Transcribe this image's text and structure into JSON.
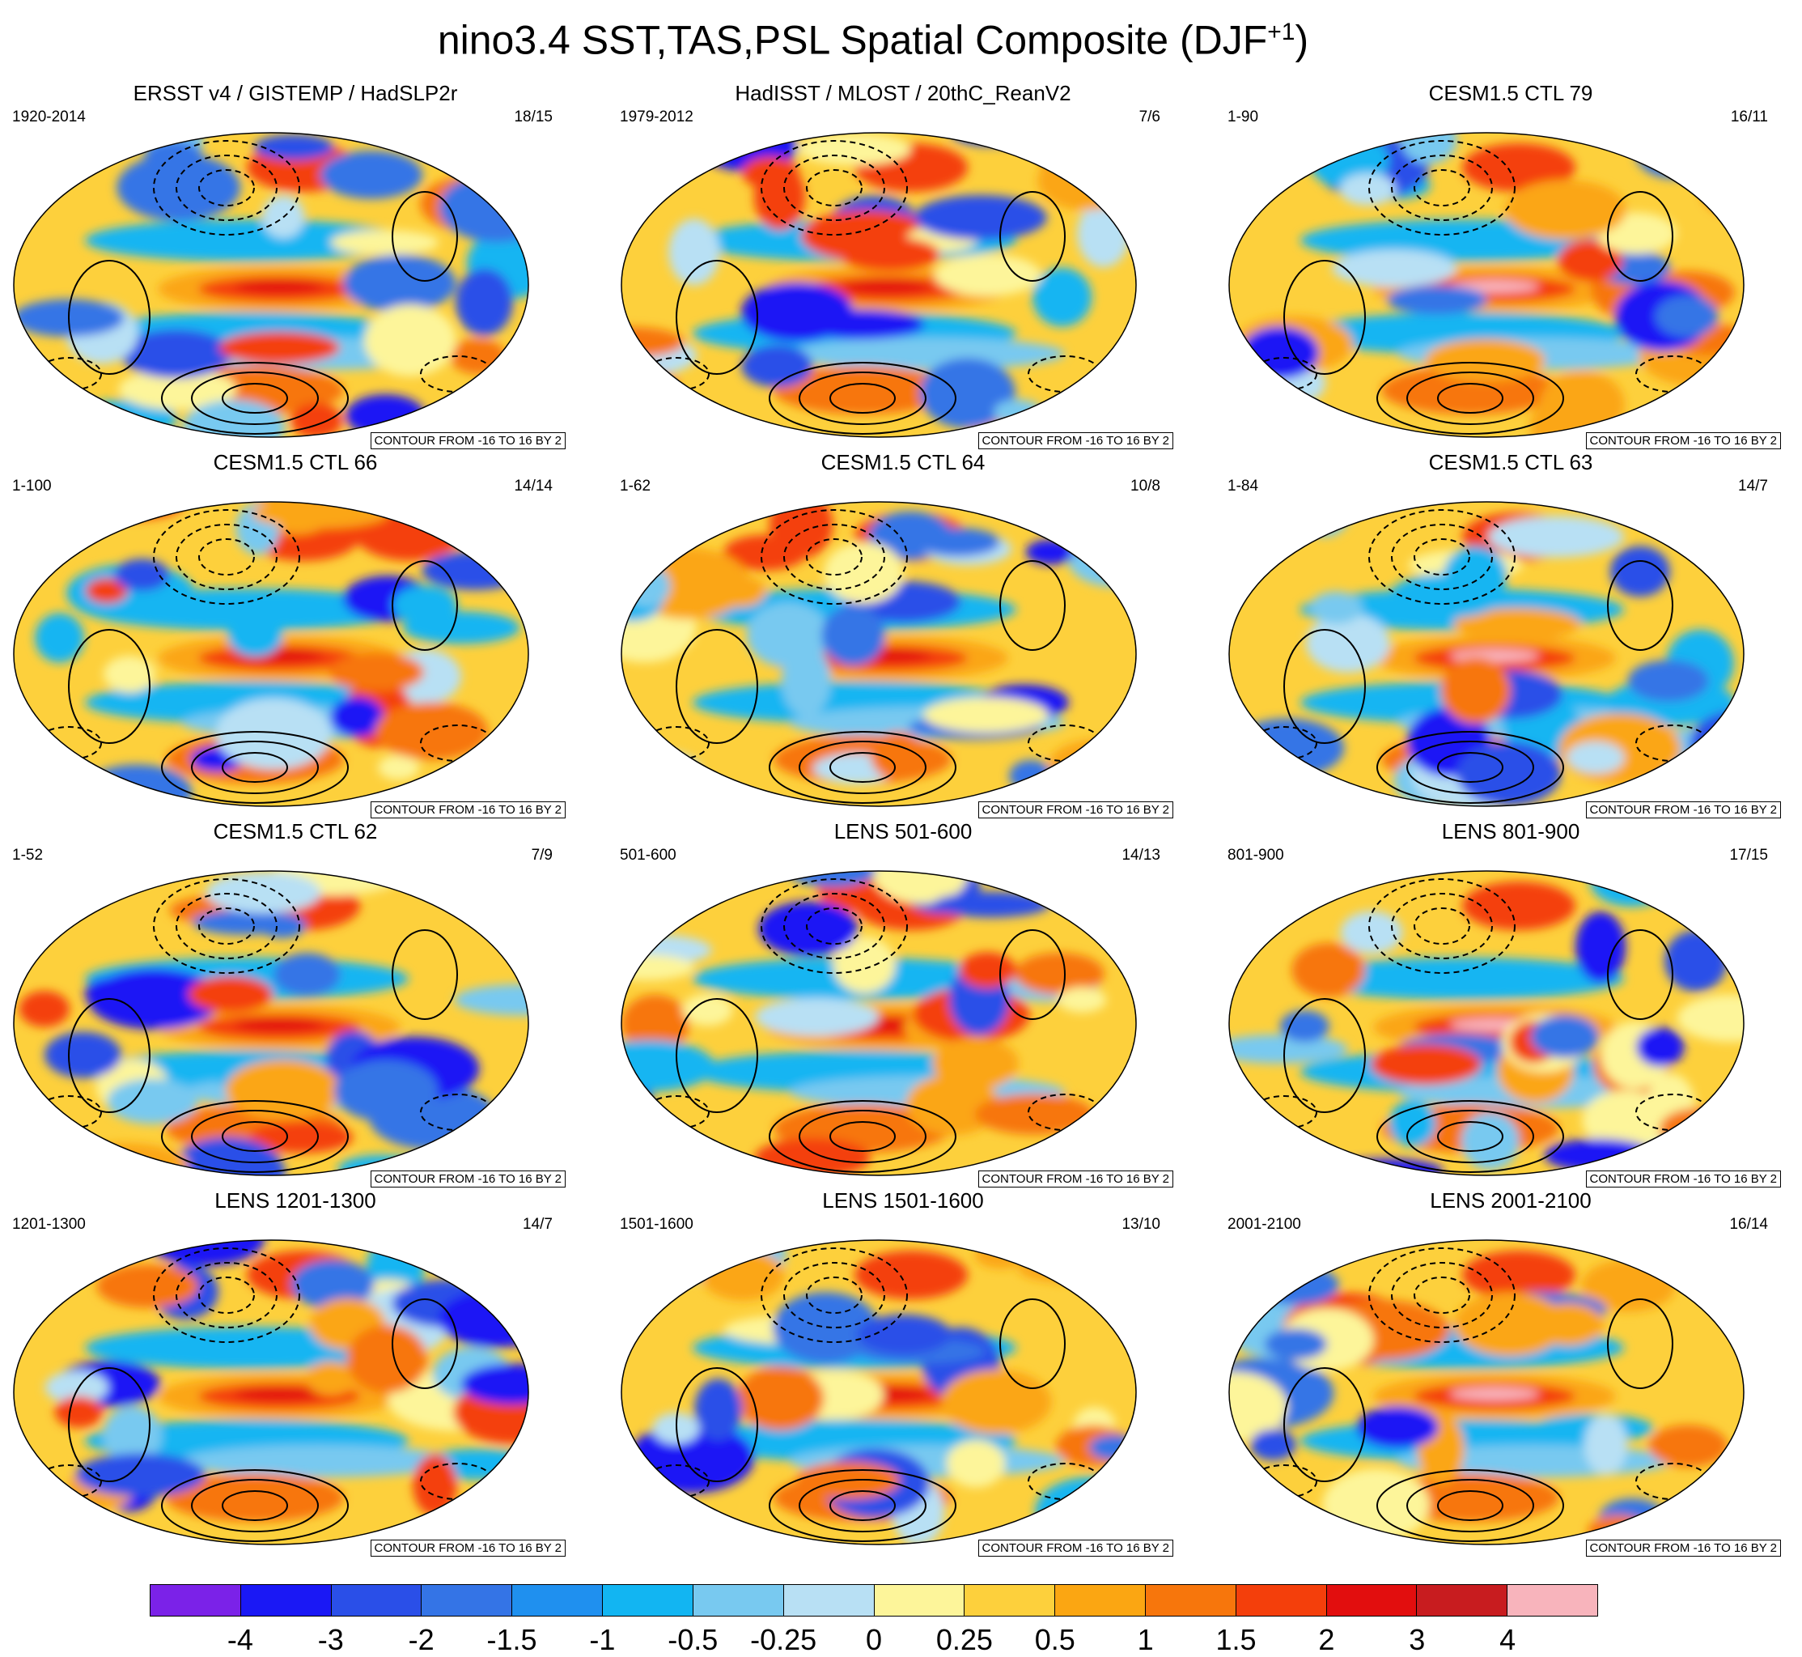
{
  "chart_data": {
    "type": "heatmap",
    "projection": "robinson-like world map",
    "title": "nino3.4 SST,TAS,PSL Spatial Composite (DJF",
    "title_sup": "+1",
    "title_end": ")",
    "contour_note": "CONTOUR FROM -16 TO 16 BY 2",
    "panels": [
      {
        "title": "ERSST v4 / GISTEMP / HadSLP2r",
        "period": "1920-2014",
        "count": "18/15",
        "variant": 0
      },
      {
        "title": "HadISST / MLOST / 20thC_ReanV2",
        "period": "1979-2012",
        "count": "7/6",
        "variant": 1
      },
      {
        "title": "CESM1.5 CTL 79",
        "period": "1-90",
        "count": "16/11",
        "variant": 2
      },
      {
        "title": "CESM1.5 CTL 66",
        "period": "1-100",
        "count": "14/14",
        "variant": 3
      },
      {
        "title": "CESM1.5 CTL 64",
        "period": "1-62",
        "count": "10/8",
        "variant": 4
      },
      {
        "title": "CESM1.5 CTL 63",
        "period": "1-84",
        "count": "14/7",
        "variant": 5
      },
      {
        "title": "CESM1.5 CTL 62",
        "period": "1-52",
        "count": "7/9",
        "variant": 6
      },
      {
        "title": "LENS 501-600",
        "period": "501-600",
        "count": "14/13",
        "variant": 7
      },
      {
        "title": "LENS 801-900",
        "period": "801-900",
        "count": "17/15",
        "variant": 8
      },
      {
        "title": "LENS 1201-1300",
        "period": "1201-1300",
        "count": "14/7",
        "variant": 9
      },
      {
        "title": "LENS 1501-1600",
        "period": "1501-1600",
        "count": "13/10",
        "variant": 10
      },
      {
        "title": "LENS 2001-2100",
        "period": "2001-2100",
        "count": "16/14",
        "variant": 11
      }
    ],
    "colorbar": {
      "colors": [
        "#7b22e8",
        "#1a18f5",
        "#2a4fe8",
        "#3474e6",
        "#1f90ef",
        "#12b5f2",
        "#78c9f0",
        "#b8e0f4",
        "#fdf59a",
        "#fdd03c",
        "#fba612",
        "#f7760c",
        "#f43f0b",
        "#e20e0e",
        "#c81c1f",
        "#f8b4bc"
      ],
      "labels": [
        "-4",
        "-3",
        "-2",
        "-1.5",
        "-1",
        "-0.5",
        "-0.25",
        "0",
        "0.25",
        "0.5",
        "1",
        "1.5",
        "2",
        "3",
        "4"
      ]
    }
  }
}
